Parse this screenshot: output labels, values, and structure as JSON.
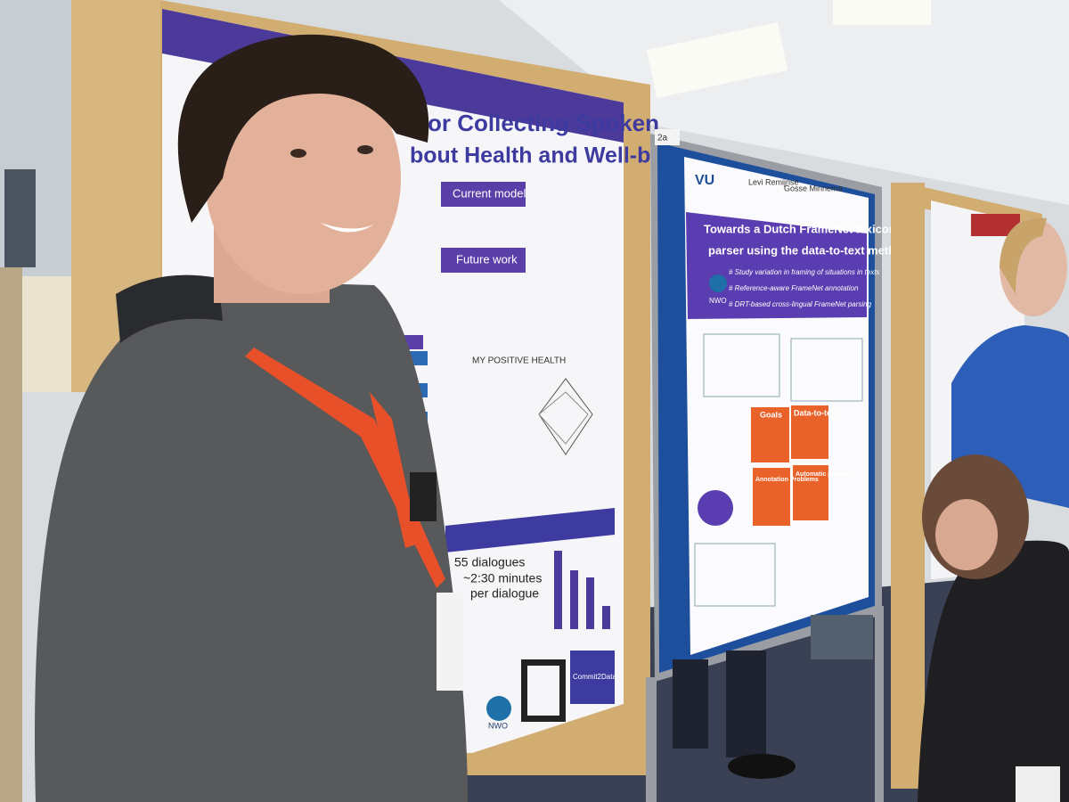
{
  "left_poster": {
    "title_lines": [
      "or Collecting Spoken",
      "bout Health and Well-being"
    ],
    "sections": [
      "Current model",
      "Future work"
    ],
    "logo": "MY POSITIVE HEALTH",
    "stats": [
      "55 dialogues",
      "~2:30 minutes",
      "per dialogue"
    ],
    "sponsors": [
      "Commit2Data",
      "NWO"
    ]
  },
  "center_poster": {
    "board_label": "2a",
    "institution": "VU",
    "authors": [
      "Levi Remijnse",
      "Gosse Minnema"
    ],
    "title_lines": [
      "Towards a Dutch FrameNet lexicon and",
      "parser using the data-to-text method"
    ],
    "bullets": [
      "# Study variation in framing of situations in texts",
      "# Reference-aware FrameNet annotation",
      "# DRT-based cross-lingual FrameNet parsing"
    ],
    "funder": "NWO",
    "boxes": [
      "Goals",
      "Data-to-text",
      "Annotation Problems",
      "Automatic parsing"
    ]
  }
}
